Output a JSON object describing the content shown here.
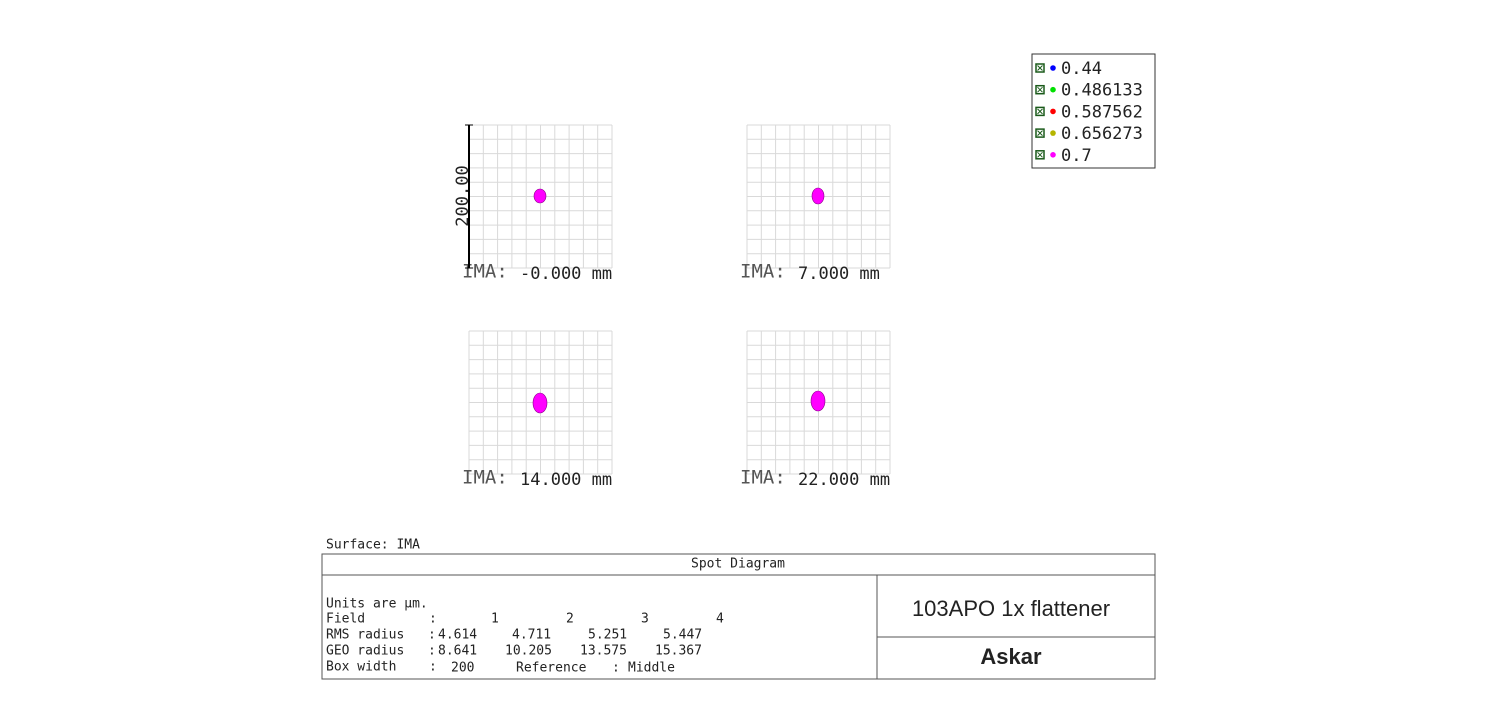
{
  "legend": {
    "entries": [
      {
        "label": "0.44",
        "color": "#0000ff"
      },
      {
        "label": "0.486133",
        "color": "#00e000"
      },
      {
        "label": "0.587562",
        "color": "#ff0000"
      },
      {
        "label": "0.656273",
        "color": "#b5b500"
      },
      {
        "label": "0.7",
        "color": "#ff00ff"
      }
    ]
  },
  "scale_label": "200.00",
  "panel_prefix": "IMA:",
  "panels": [
    {
      "field": "-0.000 mm"
    },
    {
      "field": "7.000 mm"
    },
    {
      "field": "14.000 mm"
    },
    {
      "field": "22.000 mm"
    }
  ],
  "surface": "Surface: IMA",
  "table": {
    "title": "Spot Diagram",
    "units": "Units are µm.",
    "separator": ":",
    "rows": [
      {
        "label": "Field",
        "values": [
          "1",
          "2",
          "3",
          "4"
        ]
      },
      {
        "label": "RMS radius",
        "values": [
          "4.614",
          "4.711",
          "5.251",
          "5.447"
        ]
      },
      {
        "label": "GEO radius",
        "values": [
          "8.641",
          "10.205",
          "13.575",
          "15.367"
        ]
      }
    ],
    "box_width_label": "Box width",
    "box_width": "200",
    "reference_label": "Reference",
    "reference": "Middle",
    "name": "103APO 1x flattener",
    "brand": "Askar"
  }
}
